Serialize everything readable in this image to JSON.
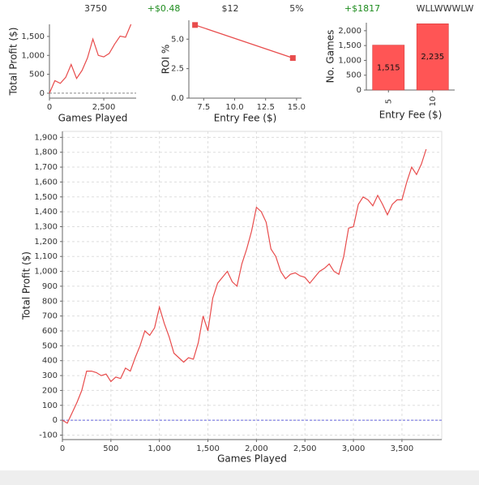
{
  "stats": [
    "3750",
    "+$0.48",
    "$12",
    "5%",
    "+$1817",
    "WLLWWWLW"
  ],
  "chart_data": [
    {
      "type": "line",
      "x_label": "Games Played",
      "y_label": "Total Profit ($)",
      "x": [
        0,
        250,
        500,
        750,
        1000,
        1250,
        1500,
        1750,
        2000,
        2250,
        2500,
        2750,
        3000,
        3250,
        3500,
        3750
      ],
      "values": [
        0,
        330,
        260,
        420,
        760,
        390,
        600,
        930,
        1430,
        1000,
        960,
        1050,
        1300,
        1510,
        1480,
        1820
      ],
      "color": "#e84c4c",
      "hline": 0,
      "hline_color": "#888888",
      "grid": false,
      "xlim": [
        0,
        3990
      ],
      "ylim": [
        -130,
        1820
      ],
      "xticks": [
        0,
        {
          "value": 2500,
          "label": "2,500"
        }
      ],
      "yticks": [
        0,
        500,
        {
          "value": 1000,
          "label": "1,000"
        },
        {
          "value": 1500,
          "label": "1,500"
        }
      ]
    },
    {
      "type": "line",
      "markers": true,
      "x_label": "Entry Fee ($)",
      "y_label": "ROI %",
      "x": [
        6.8,
        14.7
      ],
      "values": [
        6.2,
        3.4
      ],
      "color": "#e84c4c",
      "grid": false,
      "xlim": [
        6.3,
        15.4
      ],
      "ylim": [
        0,
        6.6
      ],
      "xticks": [
        7.5,
        {
          "value": 10,
          "label": "10.0"
        },
        12.5,
        {
          "value": 15,
          "label": "15.0"
        }
      ],
      "yticks": [
        {
          "value": 0,
          "label": "0.0"
        },
        {
          "value": 2.5,
          "label": "2.5"
        },
        {
          "value": 5,
          "label": "5.0"
        }
      ]
    },
    {
      "type": "bar",
      "x_label": "Entry Fee ($)",
      "y_label": "No. Games",
      "categories": [
        "5",
        "10"
      ],
      "values": [
        1515,
        2235
      ],
      "value_labels": [
        "1,515",
        "2,235"
      ],
      "color": "#ff5555",
      "grid": false,
      "ylim": [
        0,
        2270
      ],
      "yticks": [
        0,
        500,
        {
          "value": 1000,
          "label": "1,000"
        },
        {
          "value": 1500,
          "label": "1,500"
        },
        {
          "value": 2000,
          "label": "2,000"
        }
      ]
    },
    {
      "type": "line",
      "x_label": "Games Played",
      "y_label": "Total Profit ($)",
      "x": [
        0,
        50,
        100,
        150,
        200,
        250,
        300,
        350,
        400,
        450,
        500,
        550,
        600,
        650,
        700,
        750,
        800,
        850,
        900,
        950,
        1000,
        1050,
        1100,
        1150,
        1200,
        1250,
        1300,
        1350,
        1400,
        1450,
        1500,
        1550,
        1600,
        1650,
        1700,
        1750,
        1800,
        1850,
        1900,
        1950,
        2000,
        2050,
        2100,
        2150,
        2200,
        2250,
        2300,
        2350,
        2400,
        2450,
        2500,
        2550,
        2600,
        2650,
        2700,
        2750,
        2800,
        2850,
        2900,
        2950,
        3000,
        3050,
        3100,
        3150,
        3200,
        3250,
        3300,
        3350,
        3400,
        3450,
        3500,
        3550,
        3600,
        3650,
        3700,
        3750
      ],
      "values": [
        0,
        -20,
        50,
        120,
        200,
        330,
        330,
        320,
        300,
        310,
        260,
        290,
        280,
        350,
        330,
        420,
        500,
        600,
        570,
        620,
        760,
        650,
        560,
        450,
        420,
        390,
        420,
        410,
        520,
        700,
        600,
        820,
        920,
        960,
        1000,
        930,
        900,
        1050,
        1150,
        1270,
        1430,
        1400,
        1330,
        1150,
        1100,
        1000,
        950,
        980,
        990,
        970,
        960,
        920,
        960,
        1000,
        1020,
        1050,
        1000,
        980,
        1100,
        1290,
        1300,
        1450,
        1500,
        1480,
        1440,
        1510,
        1450,
        1380,
        1450,
        1480,
        1480,
        1600,
        1700,
        1650,
        1720,
        1820
      ],
      "color": "#e84c4c",
      "hline": 0,
      "hline_color": "#6666dd",
      "grid": true,
      "xlim": [
        0,
        3910
      ],
      "ylim": [
        -130,
        1940
      ],
      "xticks": [
        0,
        500,
        {
          "value": 1000,
          "label": "1,000"
        },
        {
          "value": 1500,
          "label": "1,500"
        },
        {
          "value": 2000,
          "label": "2,000"
        },
        {
          "value": 2500,
          "label": "2,500"
        },
        {
          "value": 3000,
          "label": "3,000"
        },
        {
          "value": 3500,
          "label": "3,500"
        }
      ],
      "yticks": [
        -100,
        0,
        100,
        200,
        300,
        400,
        500,
        600,
        700,
        800,
        900,
        {
          "value": 1000,
          "label": "1,000"
        },
        {
          "value": 1100,
          "label": "1,100"
        },
        {
          "value": 1200,
          "label": "1,200"
        },
        {
          "value": 1300,
          "label": "1,300"
        },
        {
          "value": 1400,
          "label": "1,400"
        },
        {
          "value": 1500,
          "label": "1,500"
        },
        {
          "value": 1600,
          "label": "1,600"
        },
        {
          "value": 1700,
          "label": "1,700"
        },
        {
          "value": 1800,
          "label": "1,800"
        },
        {
          "value": 1900,
          "label": "1,900"
        }
      ]
    }
  ]
}
